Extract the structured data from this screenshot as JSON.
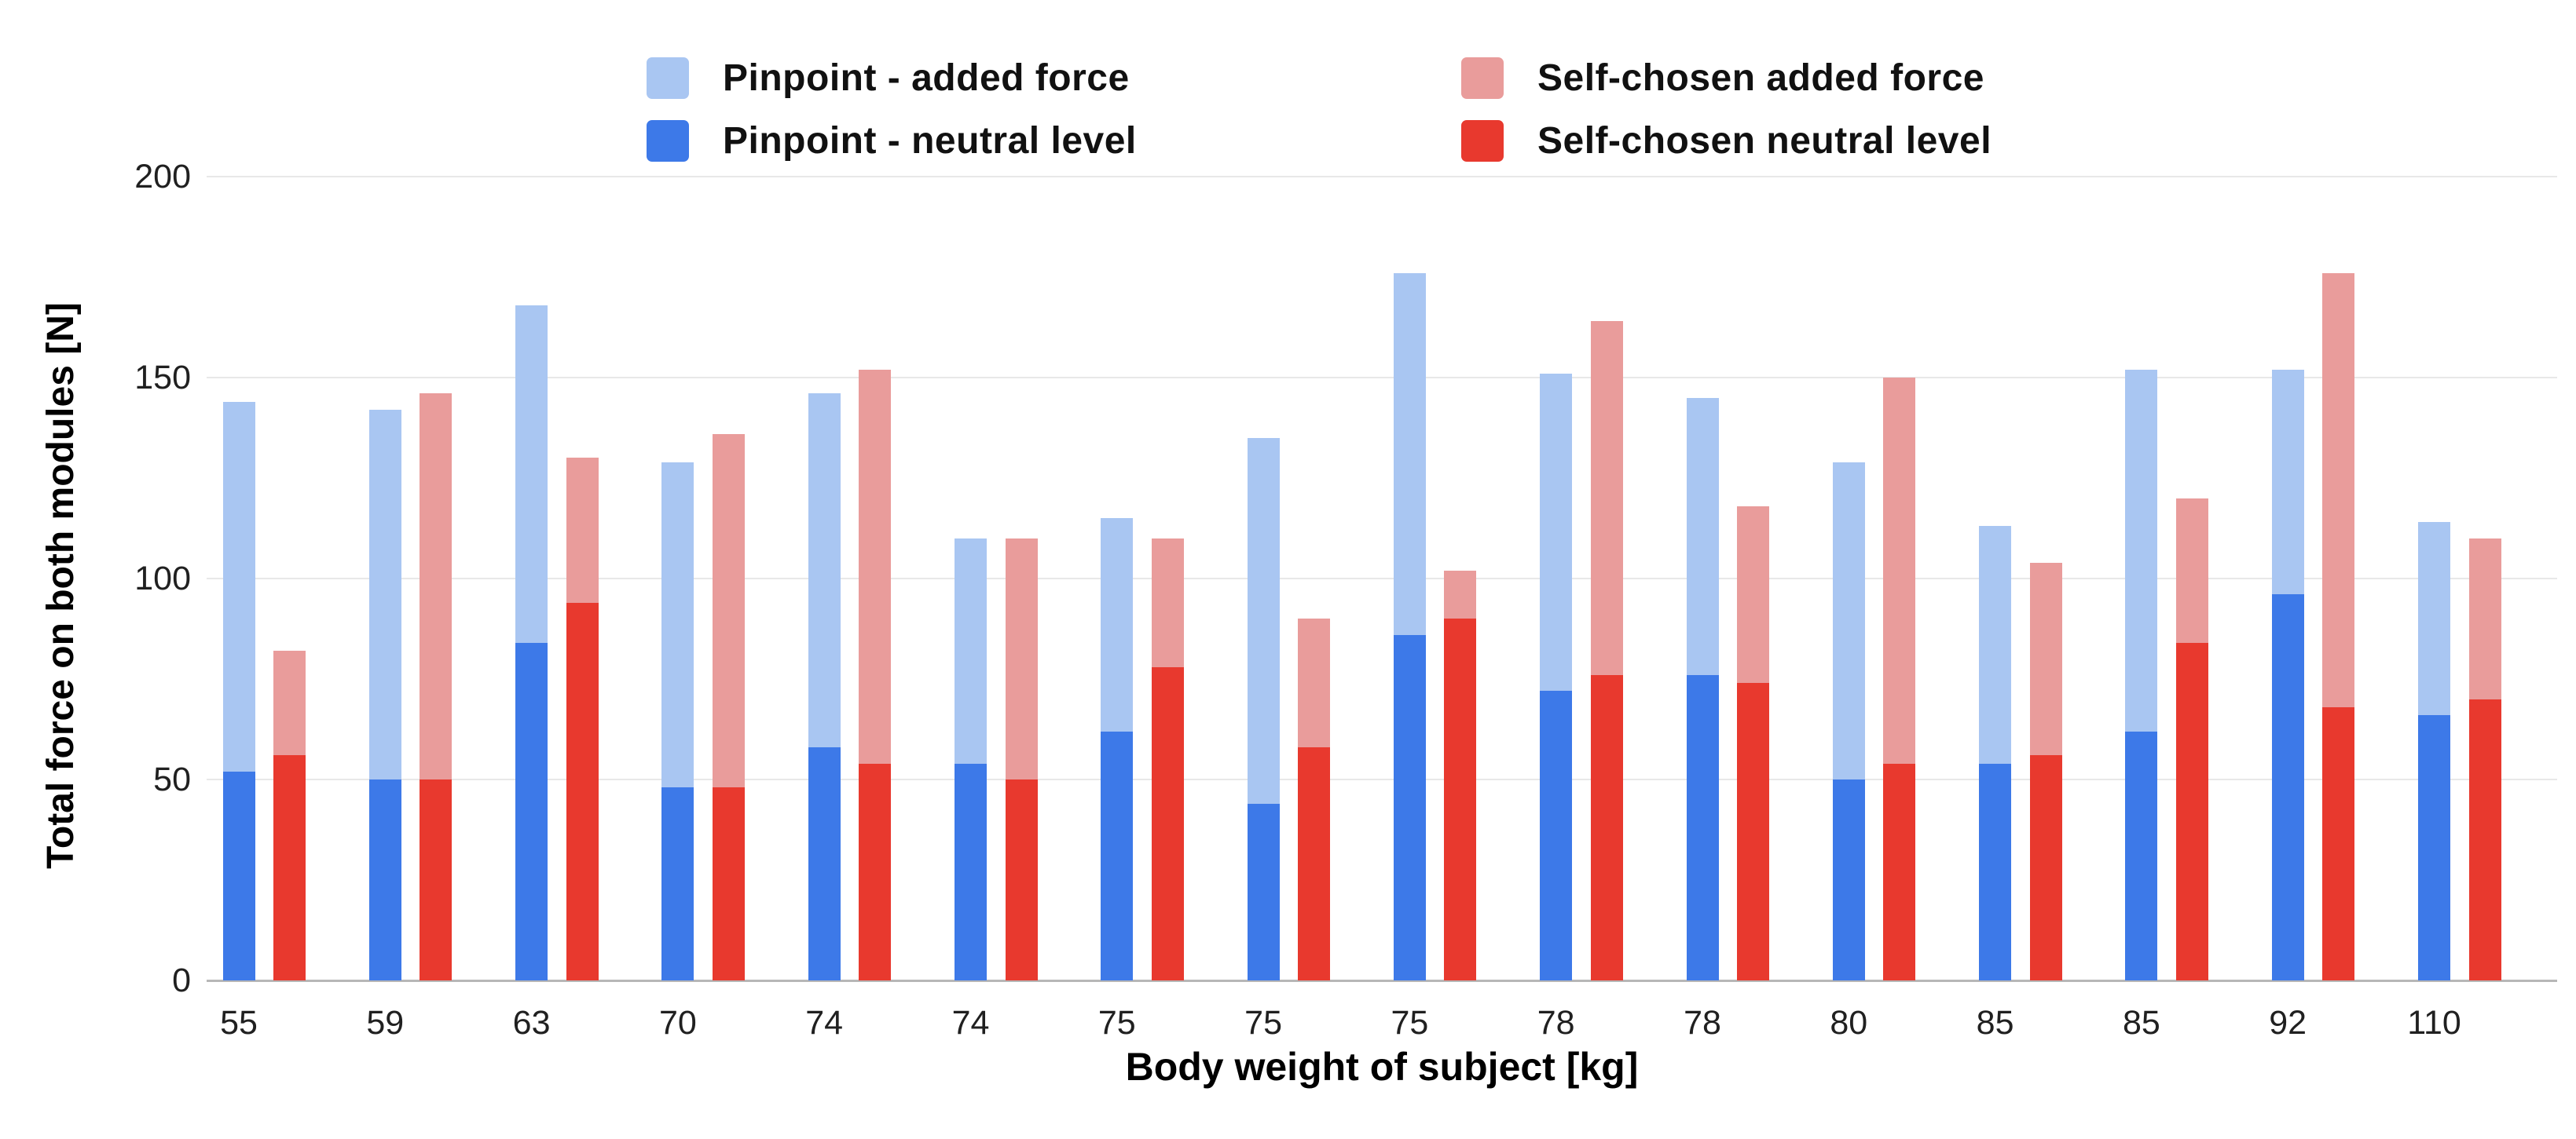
{
  "chart_data": {
    "type": "bar",
    "stacked": true,
    "title": "",
    "xlabel": "Body weight of subject [kg]",
    "ylabel": "Total force on both modules [N]",
    "ylim": [
      0,
      200
    ],
    "yticks": [
      0,
      50,
      100,
      150,
      200
    ],
    "grid": "horizontal",
    "legend_position": "top",
    "categories": [
      "55",
      "59",
      "63",
      "70",
      "74",
      "74",
      "75",
      "75",
      "75",
      "78",
      "78",
      "80",
      "85",
      "85",
      "92",
      "110"
    ],
    "series": [
      {
        "name": "Pinpoint - added force",
        "color": "#a9c6f2",
        "stack": "pinpoint",
        "values": [
          92,
          92,
          84,
          81,
          88,
          56,
          53,
          91,
          90,
          79,
          69,
          79,
          59,
          90,
          56,
          48
        ]
      },
      {
        "name": "Pinpoint - neutral level",
        "color": "#3d79e8",
        "stack": "pinpoint",
        "values": [
          52,
          50,
          84,
          48,
          58,
          54,
          62,
          44,
          86,
          72,
          76,
          50,
          54,
          62,
          96,
          66
        ]
      },
      {
        "name": "Self-chosen added force",
        "color": "#e99c9b",
        "stack": "self_chosen",
        "values": [
          26,
          96,
          36,
          88,
          98,
          60,
          32,
          32,
          12,
          88,
          44,
          96,
          48,
          36,
          108,
          40
        ]
      },
      {
        "name": "Self-chosen neutral level",
        "color": "#e8392e",
        "stack": "self_chosen",
        "values": [
          56,
          50,
          94,
          48,
          54,
          50,
          78,
          58,
          90,
          76,
          74,
          54,
          56,
          84,
          68,
          70
        ]
      }
    ],
    "stack_totals": {
      "pinpoint": [
        144,
        142,
        168,
        129,
        146,
        110,
        115,
        135,
        176,
        151,
        145,
        129,
        113,
        152,
        152,
        114
      ],
      "self_chosen": [
        82,
        146,
        130,
        136,
        152,
        110,
        110,
        90,
        102,
        164,
        118,
        150,
        104,
        120,
        176,
        110
      ]
    }
  }
}
